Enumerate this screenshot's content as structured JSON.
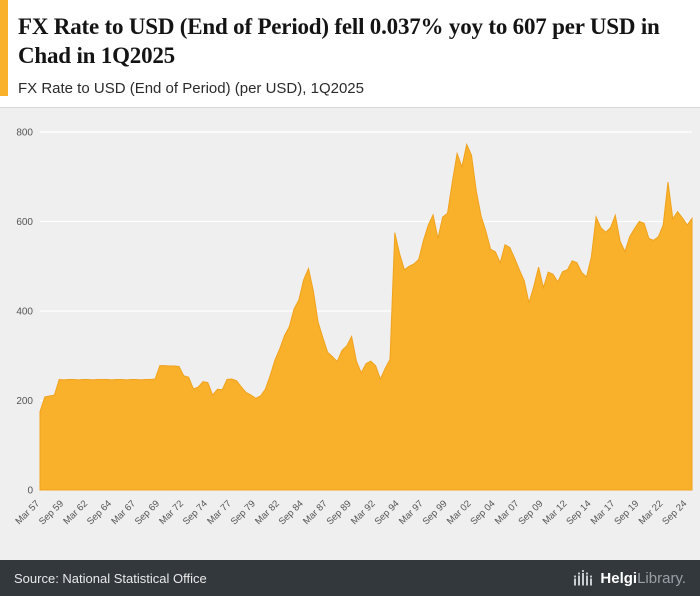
{
  "header": {
    "title": "FX Rate to USD (End of Period) fell 0.037% yoy to 607 per USD in Chad in 1Q2025",
    "subtitle": "FX Rate to USD (End of Period) (per USD), 1Q2025"
  },
  "chart_data": {
    "type": "area",
    "title": "FX Rate to USD (End of Period) (per USD), 1Q2025",
    "country": "Chad",
    "latest_period": "1Q2025",
    "latest_value": 607,
    "yoy_change_pct": -0.037,
    "ylabel": "per USD",
    "ylim": [
      0,
      800
    ],
    "yticks": [
      0,
      200,
      400,
      600,
      800
    ],
    "x_start": "Mar 1957",
    "x_end": "Mar 2025",
    "x_step_months": 6,
    "tick_every": 5,
    "tick_labels": [
      "Mar 57",
      "Sep 59",
      "Mar 62",
      "Sep 64",
      "Mar 67",
      "Sep 69",
      "Mar 72",
      "Sep 74",
      "Mar 77",
      "Sep 79",
      "Mar 82",
      "Sep 84",
      "Mar 87",
      "Sep 89",
      "Mar 92",
      "Sep 94",
      "Mar 97",
      "Sep 99",
      "Mar 02",
      "Sep 04",
      "Mar 07",
      "Sep 09",
      "Mar 12",
      "Sep 14",
      "Mar 17",
      "Sep 19",
      "Mar 22",
      "Sep 24"
    ],
    "values": [
      175,
      208,
      210,
      212,
      247,
      246,
      247,
      247,
      246,
      247,
      247,
      246,
      247,
      247,
      247,
      246,
      247,
      247,
      246,
      247,
      247,
      246,
      247,
      247,
      248,
      278,
      278,
      277,
      277,
      276,
      255,
      252,
      226,
      230,
      242,
      240,
      212,
      225,
      224,
      247,
      248,
      244,
      230,
      218,
      212,
      205,
      210,
      225,
      255,
      290,
      315,
      345,
      365,
      405,
      425,
      470,
      495,
      445,
      375,
      340,
      308,
      298,
      287,
      312,
      322,
      343,
      288,
      262,
      282,
      288,
      278,
      248,
      272,
      292,
      575,
      528,
      492,
      500,
      505,
      515,
      558,
      592,
      615,
      562,
      610,
      618,
      688,
      752,
      722,
      772,
      748,
      668,
      612,
      578,
      538,
      532,
      508,
      548,
      542,
      518,
      492,
      468,
      418,
      455,
      498,
      452,
      487,
      482,
      465,
      488,
      492,
      512,
      508,
      486,
      476,
      520,
      610,
      586,
      576,
      586,
      614,
      556,
      533,
      566,
      584,
      600,
      596,
      562,
      558,
      566,
      592,
      688,
      606,
      622,
      608,
      592,
      607
    ],
    "fill_color": "#F9B02B",
    "stroke_color": "#F0A21C",
    "bg_color": "#EFEFEF",
    "grid_color": "#FFFFFF",
    "grid": true,
    "legend": "none"
  },
  "footer": {
    "source": "Source: National Statistical Office",
    "brand_bold": "Helgi",
    "brand_light": "Library."
  },
  "colors": {
    "accent": "#F9B02B",
    "footer_bg": "#33383D",
    "chart_bg": "#EFEFEF"
  }
}
